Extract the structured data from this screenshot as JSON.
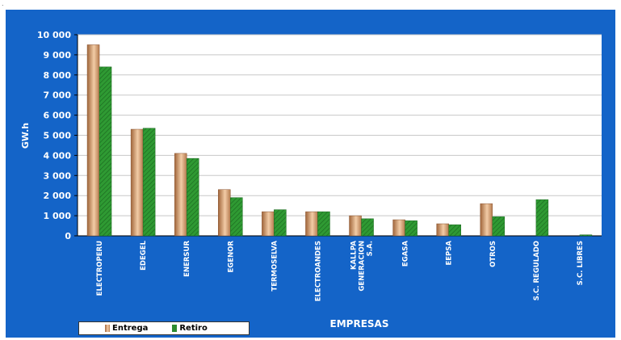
{
  "corner_mark": ".",
  "chart_data": {
    "type": "bar",
    "title": "",
    "xlabel": "EMPRESAS",
    "ylabel": "GW.h",
    "ylim": [
      0,
      10000
    ],
    "yticks": [
      "0",
      "1 000",
      "2 000",
      "3 000",
      "4 000",
      "5 000",
      "6 000",
      "7 000",
      "8 000",
      "9 000",
      "10 000"
    ],
    "categories": [
      [
        "ELECTROPERU"
      ],
      [
        "EDEGEL"
      ],
      [
        "ENERSUR"
      ],
      [
        "EGENOR"
      ],
      [
        "TERMOSELVA"
      ],
      [
        "ELECTROANDES"
      ],
      [
        "KALLPA",
        "GENERACION",
        "S.A."
      ],
      [
        "EGASA"
      ],
      [
        "EEPSA"
      ],
      [
        "OTROS"
      ],
      [
        "S.C. REGULADO"
      ],
      [
        "S.C. LIBRES"
      ]
    ],
    "series": [
      {
        "name": "Entrega",
        "color": "#e8b890",
        "values": [
          9500,
          5300,
          4100,
          2300,
          1200,
          1200,
          1000,
          800,
          600,
          1600,
          0,
          0
        ]
      },
      {
        "name": "Retiro",
        "color": "#2e8b30",
        "values": [
          8400,
          5350,
          3850,
          1900,
          1300,
          1200,
          850,
          750,
          550,
          950,
          1800,
          50
        ]
      }
    ],
    "grid": true,
    "legend": "bottom-left"
  }
}
